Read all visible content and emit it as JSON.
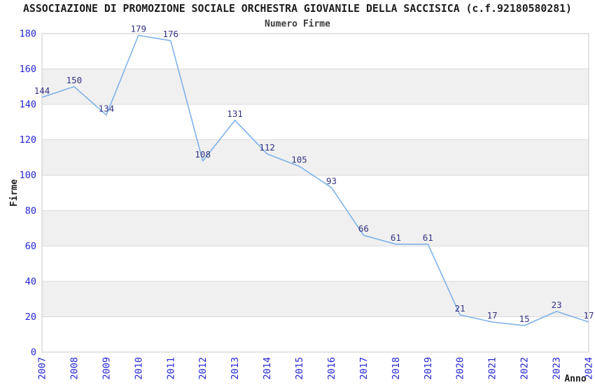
{
  "header": {
    "title": "ASSOCIAZIONE DI PROMOZIONE SOCIALE ORCHESTRA GIOVANILE DELLA SACCISICA (c.f.92180580281)",
    "subtitle": "Numero Firme"
  },
  "chart_data": {
    "type": "line",
    "title": "ASSOCIAZIONE DI PROMOZIONE SOCIALE ORCHESTRA GIOVANILE DELLA SACCISICA (c.f.92180580281)",
    "subtitle": "Numero Firme",
    "xlabel": "Anno",
    "ylabel": "Firme",
    "categories": [
      "2007",
      "2008",
      "2009",
      "2010",
      "2011",
      "2012",
      "2013",
      "2014",
      "2015",
      "2016",
      "2017",
      "2018",
      "2019",
      "2020",
      "2021",
      "2022",
      "2023",
      "2024"
    ],
    "values": [
      144,
      150,
      134,
      179,
      176,
      108,
      131,
      112,
      105,
      93,
      66,
      61,
      61,
      21,
      17,
      15,
      23,
      17
    ],
    "ylim": [
      0,
      180
    ],
    "ytick_interval": 20,
    "legend": "none",
    "grid": "horizontal",
    "band_pattern": "alternating-gray-bands-20-40-60-80-100-120-140-160",
    "data_labels": "above-points",
    "colors": {
      "line": "#7fb2e8",
      "tick_label": "#2525d2",
      "data_label": "#333384",
      "band": "#f0f0f0",
      "grid": "#dadada",
      "border": "#c8c8c8",
      "axis_title": "#1d1d1d",
      "background": "#ffffff"
    }
  }
}
